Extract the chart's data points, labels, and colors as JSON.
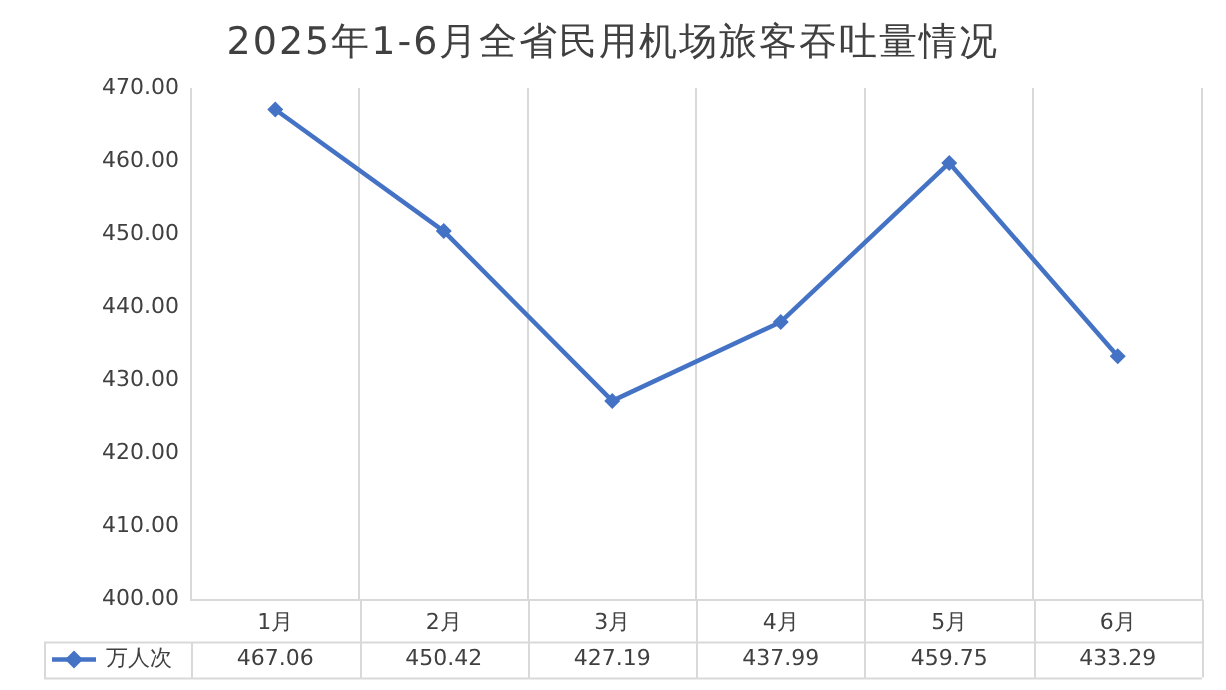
{
  "chart_data": {
    "type": "line",
    "title": "2025年1-6月全省民用机场旅客吞吐量情况",
    "categories": [
      "1月",
      "2月",
      "3月",
      "4月",
      "5月",
      "6月"
    ],
    "series": [
      {
        "name": "万人次",
        "color": "#4472c4",
        "values": [
          467.06,
          450.42,
          427.19,
          437.99,
          459.75,
          433.29
        ]
      }
    ],
    "ylim": [
      400,
      470
    ],
    "yticks": [
      {
        "value": 400,
        "label": "400.00"
      },
      {
        "value": 410,
        "label": "410.00"
      },
      {
        "value": 420,
        "label": "420.00"
      },
      {
        "value": 430,
        "label": "430.00"
      },
      {
        "value": 440,
        "label": "440.00"
      },
      {
        "value": 450,
        "label": "450.00"
      },
      {
        "value": 460,
        "label": "460.00"
      },
      {
        "value": 470,
        "label": "470.00"
      }
    ],
    "grid": "x",
    "legend": "bottom",
    "marker": "diamond",
    "line_style": "solid",
    "data_labels": true
  }
}
